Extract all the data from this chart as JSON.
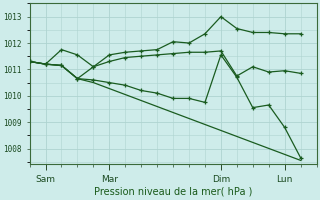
{
  "background_color": "#ceecea",
  "grid_color": "#aed4d0",
  "line_color": "#1a5c20",
  "xlabel": "Pression niveau de la mer( hPa )",
  "xtick_labels": [
    "Sam",
    "Mar",
    "Dim",
    "Lun"
  ],
  "xtick_positions": [
    1,
    5,
    12,
    16
  ],
  "ylabel_ticks": [
    1008,
    1009,
    1010,
    1011,
    1012,
    1013
  ],
  "ylim": [
    1007.4,
    1013.5
  ],
  "xlim": [
    0,
    18
  ],
  "series1_x": [
    0,
    1,
    2,
    3,
    4,
    5,
    6,
    7,
    8,
    9,
    10,
    11,
    12,
    13,
    14,
    15,
    16,
    17
  ],
  "series1_y": [
    1011.3,
    1011.2,
    1011.75,
    1011.55,
    1011.1,
    1011.55,
    1011.65,
    1011.7,
    1011.75,
    1012.05,
    1012.0,
    1012.35,
    1013.0,
    1012.55,
    1012.4,
    1012.4,
    1012.35,
    1012.35
  ],
  "series2_x": [
    0,
    1,
    2,
    3,
    4,
    5,
    6,
    7,
    8,
    9,
    10,
    11,
    12,
    13,
    14,
    15,
    16,
    17
  ],
  "series2_y": [
    1011.3,
    1011.2,
    1011.15,
    1010.65,
    1011.1,
    1011.3,
    1011.45,
    1011.5,
    1011.55,
    1011.6,
    1011.65,
    1011.65,
    1011.7,
    1010.75,
    1011.1,
    1010.9,
    1010.95,
    1010.85
  ],
  "series3_x": [
    0,
    1,
    2,
    3,
    4,
    5,
    6,
    7,
    8,
    9,
    10,
    11,
    12,
    13,
    14,
    15,
    16,
    17
  ],
  "series3_y": [
    1011.3,
    1011.2,
    1011.15,
    1010.65,
    1010.6,
    1010.5,
    1010.4,
    1010.2,
    1010.1,
    1009.9,
    1009.9,
    1009.75,
    1011.55,
    1010.7,
    1009.55,
    1009.65,
    1008.8,
    1007.65
  ],
  "series4_x": [
    0,
    1,
    2,
    3,
    4,
    17
  ],
  "series4_y": [
    1011.3,
    1011.2,
    1011.15,
    1010.65,
    1010.5,
    1007.55
  ]
}
